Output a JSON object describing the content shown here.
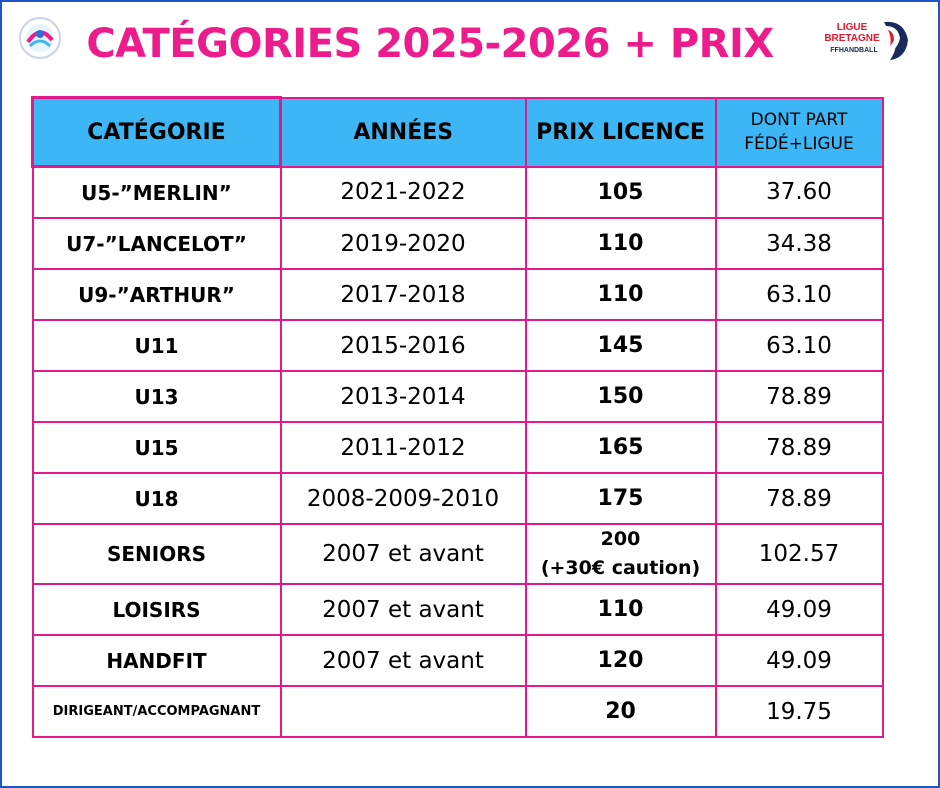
{
  "page": {
    "title": "CATÉGORIES 2025-2026 + PRIX"
  },
  "logos": {
    "right_line1": "LIGUE",
    "right_line2": "BRETAGNE",
    "right_line3": "FFHANDBALL"
  },
  "colors": {
    "accent_pink": "#ec1c8c",
    "header_blue": "#3db6f5",
    "frame_blue": "#1f55c6"
  },
  "table": {
    "headers": {
      "category": "CATÉGORIE",
      "years": "ANNÉES",
      "price": "PRIX LICENCE",
      "part_line1": "DONT PART",
      "part_line2": "FÉDÉ+LIGUE"
    },
    "rows": [
      {
        "category": "U5-”MERLIN”",
        "years": "2021-2022",
        "price": "105",
        "price_note": "",
        "part": "37.60"
      },
      {
        "category": "U7-”LANCELOT”",
        "years": "2019-2020",
        "price": "110",
        "price_note": "",
        "part": "34.38"
      },
      {
        "category": "U9-”ARTHUR”",
        "years": "2017-2018",
        "price": "110",
        "price_note": "",
        "part": "63.10"
      },
      {
        "category": "U11",
        "years": "2015-2016",
        "price": "145",
        "price_note": "",
        "part": "63.10"
      },
      {
        "category": "U13",
        "years": "2013-2014",
        "price": "150",
        "price_note": "",
        "part": "78.89"
      },
      {
        "category": "U15",
        "years": "2011-2012",
        "price": "165",
        "price_note": "",
        "part": "78.89"
      },
      {
        "category": "U18",
        "years": "2008-2009-2010",
        "price": "175",
        "price_note": "",
        "part": "78.89"
      },
      {
        "category": "SENIORS",
        "years": "2007 et avant",
        "price": "200",
        "price_note": "(+30€ caution)",
        "part": "102.57"
      },
      {
        "category": "LOISIRS",
        "years": "2007 et avant",
        "price": "110",
        "price_note": "",
        "part": "49.09"
      },
      {
        "category": "HANDFIT",
        "years": "2007 et avant",
        "price": "120",
        "price_note": "",
        "part": "49.09"
      },
      {
        "category": "DIRIGEANT/ACCOMPAGNANT",
        "years": "",
        "price": "20",
        "price_note": "",
        "part": "19.75"
      }
    ]
  }
}
